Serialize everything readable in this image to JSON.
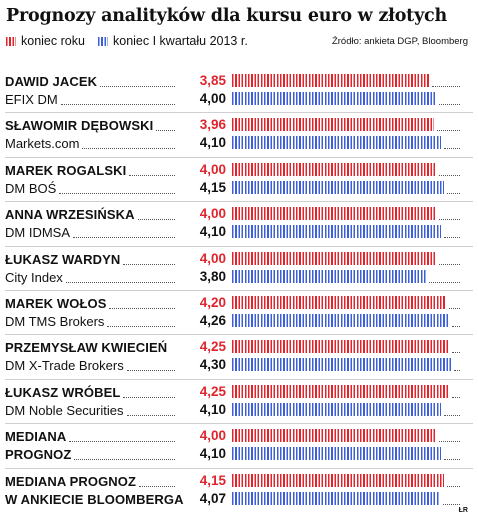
{
  "title": "Prognozy analityków dla kursu euro w złotych",
  "legend": {
    "end_of_year": "koniec roku",
    "end_of_q1": "koniec I kwartału 2013 r."
  },
  "source": "Źródło: ankieta DGP, Bloomberg",
  "credit": "ŁR",
  "colors": {
    "end_of_year": "#e0242c",
    "end_of_q1": "#3d5fd6"
  },
  "chart_data": {
    "type": "bar",
    "title": "Prognozy analityków dla kursu euro w złotych",
    "orientation": "horizontal",
    "categories": [
      "DAWID JACEK / EFIX DM",
      "SŁAWOMIR DĘBOWSKI / Markets.com",
      "MAREK ROGALSKI / DM BOŚ",
      "ANNA WRZESIŃSKA / DM IDMSA",
      "ŁUKASZ WARDYN / City Index",
      "MAREK WOŁOS / DM TMS Brokers",
      "PRZEMYSŁAW KWIECIEŃ / DM X-Trade Brokers",
      "ŁUKASZ WRÓBEL / DM Noble Securities",
      "MEDIANA / PROGNOZ",
      "MEDIANA PROGNOZ / W ANKIECIE BLOOMBERGA"
    ],
    "series": [
      {
        "name": "koniec roku",
        "values": [
          3.85,
          3.96,
          4.0,
          4.0,
          4.0,
          4.2,
          4.25,
          4.25,
          4.0,
          4.15
        ]
      },
      {
        "name": "koniec I kwartału 2013 r.",
        "values": [
          4.0,
          4.1,
          4.15,
          4.1,
          3.8,
          4.26,
          4.3,
          4.1,
          4.1,
          4.07
        ]
      }
    ],
    "legend_position": "top-left",
    "grid": false
  },
  "rows": [
    {
      "line1": "DAWID JACEK",
      "line2": "EFIX DM",
      "v1": "3,85",
      "v2": "4,00"
    },
    {
      "line1": "SŁAWOMIR DĘBOWSKI",
      "line2": "Markets.com",
      "v1": "3,96",
      "v2": "4,10"
    },
    {
      "line1": "MAREK ROGALSKI",
      "line2": "DM BOŚ",
      "v1": "4,00",
      "v2": "4,15"
    },
    {
      "line1": "ANNA WRZESIŃSKA",
      "line2": "DM IDMSA",
      "v1": "4,00",
      "v2": "4,10"
    },
    {
      "line1": "ŁUKASZ WARDYN",
      "line2": "City Index",
      "v1": "4,00",
      "v2": "3,80"
    },
    {
      "line1": "MAREK WOŁOS",
      "line2": "DM TMS Brokers",
      "v1": "4,20",
      "v2": "4,26"
    },
    {
      "line1": "PRZEMYSŁAW KWIECIEŃ",
      "line2": "DM X-Trade Brokers",
      "v1": "4,25",
      "v2": "4,30"
    },
    {
      "line1": "ŁUKASZ WRÓBEL",
      "line2": "DM Noble Securities",
      "v1": "4,25",
      "v2": "4,10"
    },
    {
      "line1": "MEDIANA",
      "line2": "PROGNOZ",
      "v1": "4,00",
      "v2": "4,10"
    },
    {
      "line1": "MEDIANA PROGNOZ",
      "line2": "W ANKIECIE BLOOMBERGA",
      "v1": "4,15",
      "v2": "4,07"
    }
  ]
}
